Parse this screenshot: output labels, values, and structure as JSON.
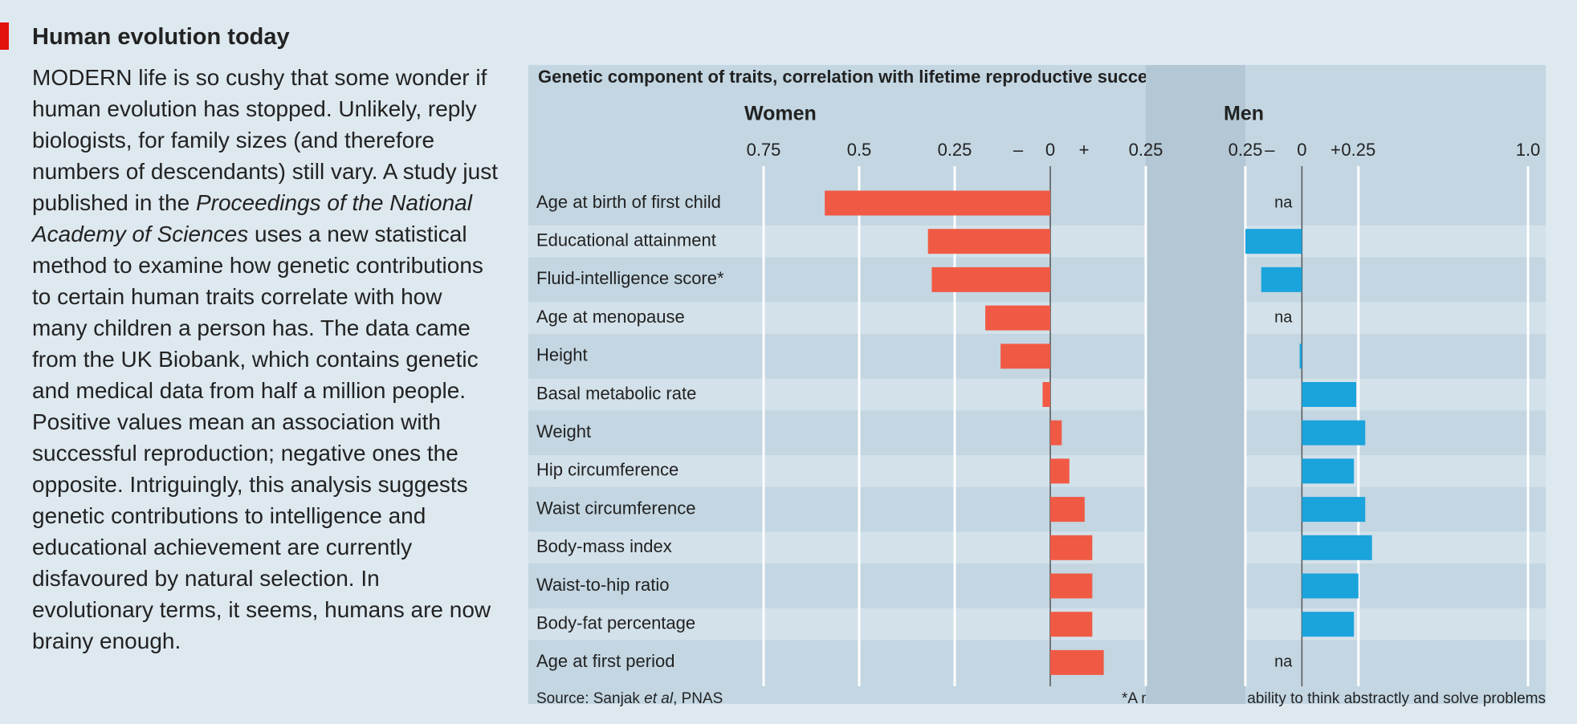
{
  "article": {
    "title": "Human evolution today",
    "paragraph": [
      "MODERN life is so cushy that some wonder if human evolution has stopped. Unlikely, reply biologists, for family sizes (and therefore numbers of descendants) still vary. A study just published in the ",
      "Proceedings of the National Academy of Sciences",
      " uses a new statistical method to examine how genetic contributions to certain human traits correlate with how many children a person has. The data came from the UK Biobank, which contains genetic and medical data from half a million people. Positive values mean an association with successful reproduction; negative ones the opposite. Intriguingly, this analysis suggests genetic contributions to intelligence and educational achievement are currently disfavoured by natural selection. In evolutionary terms, it seems, humans are now brainy enough."
    ]
  },
  "figure": {
    "title": "Genetic component of traits, correlation with lifetime reproductive success",
    "source": [
      "Source: Sanjak ",
      "et al",
      ", PNAS"
    ],
    "footnote": "*A measure of the ability to think abstractly and solve problems"
  },
  "chart_data": [
    {
      "type": "bar",
      "orientation": "horizontal",
      "title": "Women",
      "color": "#f05a45",
      "categories": [
        "Age at birth of first child",
        "Educational attainment",
        "Fluid-intelligence score*",
        "Age at menopause",
        "Height",
        "Basal metabolic rate",
        "Weight",
        "Hip circumference",
        "Waist circumference",
        "Body-mass index",
        "Waist-to-hip ratio",
        "Body-fat percentage",
        "Age at first period"
      ],
      "values": [
        -0.59,
        -0.32,
        -0.31,
        -0.17,
        -0.13,
        -0.02,
        0.03,
        0.05,
        0.09,
        0.11,
        0.11,
        0.11,
        0.14
      ],
      "xlim": [
        -0.75,
        0.25
      ],
      "xticks": [
        {
          "value": -0.75,
          "label": "0.75"
        },
        {
          "value": -0.5,
          "label": "0.5"
        },
        {
          "value": -0.25,
          "label": "0.25"
        },
        0,
        0.25
      ],
      "negative_sign": "–",
      "positive_sign": "+",
      "grid": true
    },
    {
      "type": "bar",
      "orientation": "horizontal",
      "title": "Men",
      "color": "#1ba3dc",
      "values": [
        null,
        -0.25,
        -0.18,
        null,
        -0.01,
        0.24,
        0.28,
        0.23,
        0.28,
        0.31,
        0.25,
        0.23,
        null
      ],
      "value_labels": [
        "na",
        null,
        null,
        "na",
        null,
        null,
        null,
        null,
        null,
        null,
        null,
        null,
        "na"
      ],
      "xlim": [
        -0.25,
        1.0
      ],
      "xticks": [
        {
          "value": -0.25,
          "label": "0.25"
        },
        0,
        0.25,
        {
          "value": 1,
          "label": "1.0"
        }
      ],
      "negative_sign": "–",
      "positive_sign": "+",
      "grid": true
    }
  ]
}
